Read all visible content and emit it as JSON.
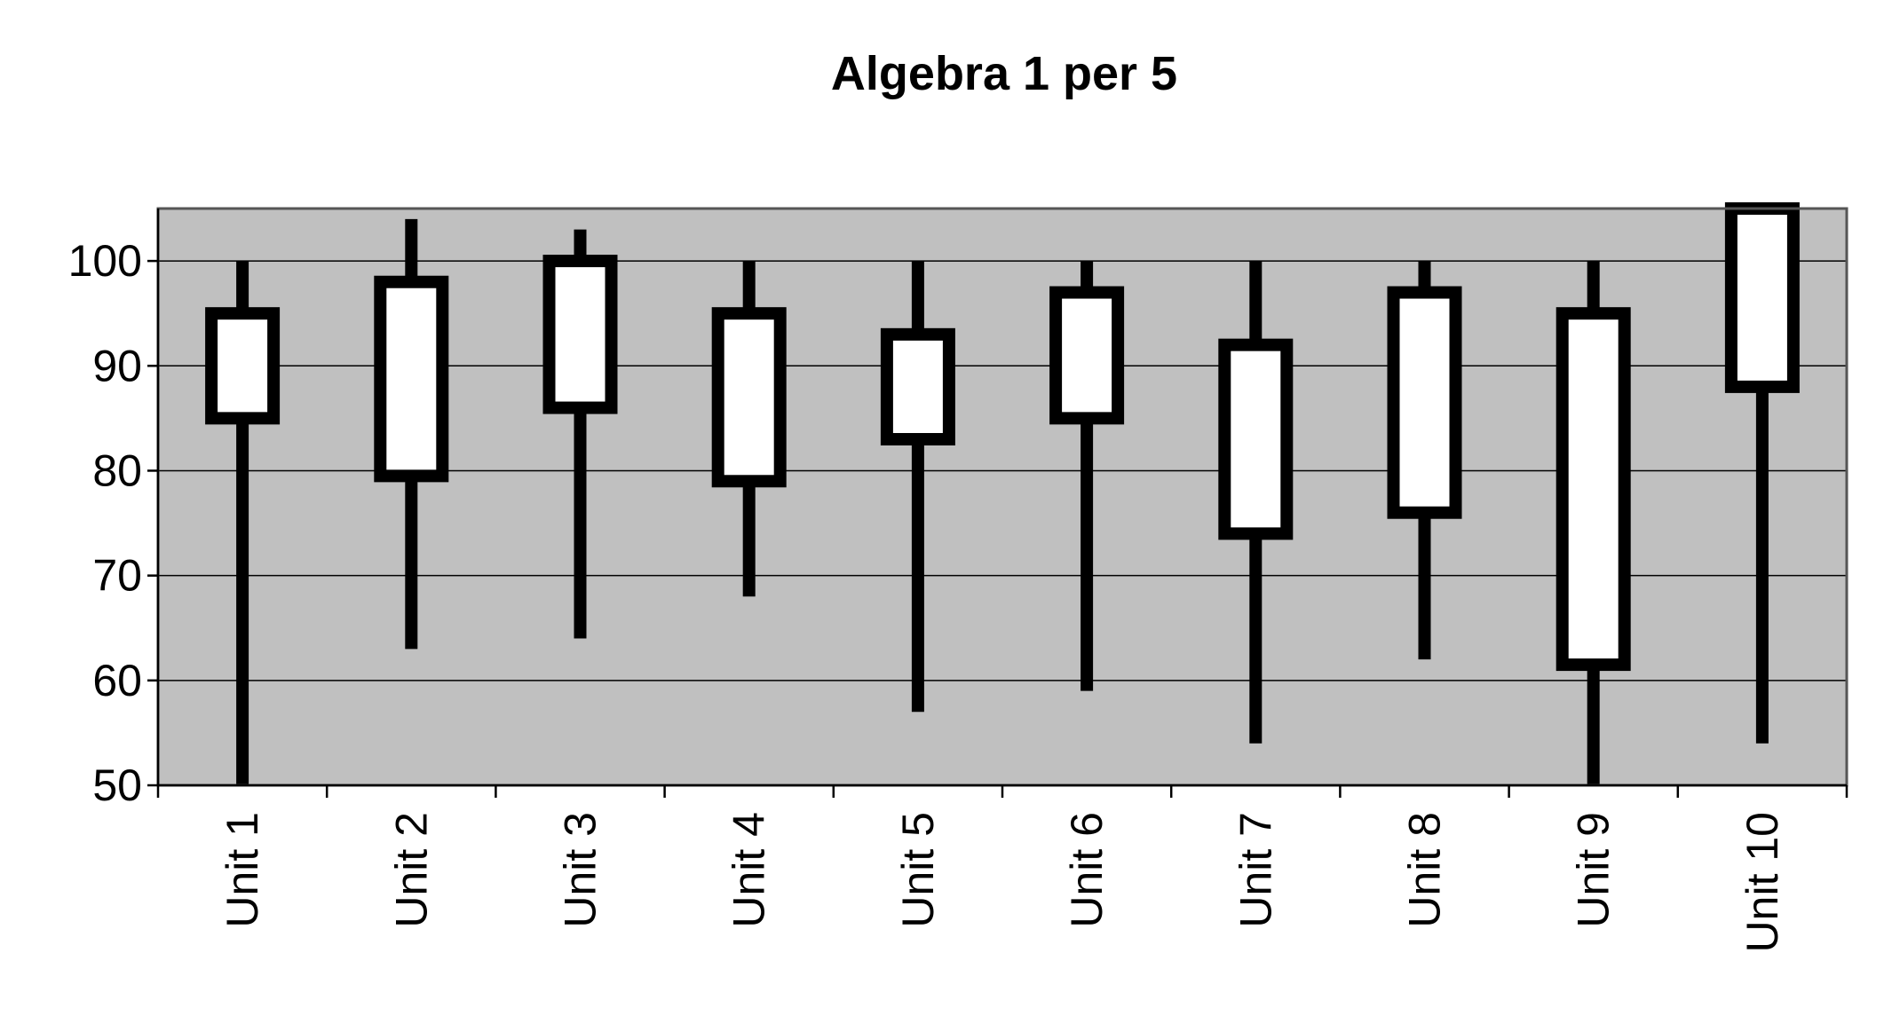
{
  "chart_data": {
    "type": "box",
    "title": "Algebra 1 per 5",
    "xlabel": "",
    "ylabel": "",
    "ylim": [
      50,
      105
    ],
    "yticks": [
      50,
      60,
      70,
      80,
      90,
      100
    ],
    "grid": true,
    "legend": "none",
    "categories": [
      "Unit 1",
      "Unit 2",
      "Unit 3",
      "Unit 4",
      "Unit 5",
      "Unit 6",
      "Unit 7",
      "Unit 8",
      "Unit 9",
      "Unit 10"
    ],
    "series": [
      {
        "min": [
          50,
          63,
          64,
          68,
          57,
          59,
          54,
          62,
          50,
          54
        ],
        "q1": [
          85,
          79.5,
          86,
          79,
          83,
          85,
          74,
          76,
          61.5,
          88
        ],
        "q3": [
          95,
          98,
          100,
          95,
          93,
          97,
          92,
          97,
          95,
          105
        ],
        "max": [
          100,
          104,
          103,
          100,
          100,
          100,
          100,
          100,
          100,
          105
        ]
      }
    ],
    "colors": {
      "plot_background": "#c0c0c0",
      "box_fill": "#ffffff",
      "outline": "#000000",
      "gridline": "#000000"
    }
  }
}
